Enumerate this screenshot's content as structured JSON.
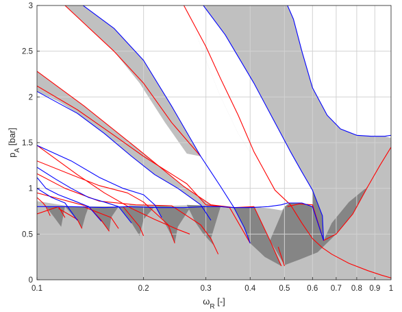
{
  "chart_data": {
    "type": "area",
    "title": "",
    "xlabel": {
      "symbol": "ω",
      "sub": "R",
      "unit": " [-]"
    },
    "ylabel": {
      "symbol": "p",
      "sub": "A",
      "unit": " [bar]"
    },
    "xscale": "log",
    "xlim": [
      0.1,
      1.0
    ],
    "ylim": [
      0,
      3
    ],
    "xticks": [
      0.1,
      0.2,
      0.3,
      0.4,
      0.5,
      0.6,
      0.7,
      0.8,
      0.9,
      1.0
    ],
    "xticklabels": [
      "0.1",
      "0.2",
      "0.3",
      "0.4",
      "0.5",
      "0.6",
      "0.7",
      "0.8",
      "0.9",
      "1"
    ],
    "yticks": [
      0,
      0.5,
      1,
      1.5,
      2,
      2.5,
      3
    ],
    "yticklabels": [
      "0",
      "0.5",
      "1",
      "1.5",
      "2",
      "2.5",
      "3"
    ],
    "grid": true,
    "legend": "none",
    "colors": {
      "region_light": "#c0c0c0",
      "region_dark": "#858585",
      "stable_region": "#ffffff",
      "boundary_red": "#ff0000",
      "boundary_blue": "#0000ff",
      "grid": "#d2d2d2"
    },
    "regions": [
      {
        "shade": "light",
        "points": [
          [
            0.1,
            3.0
          ],
          [
            0.1,
            0.0
          ],
          [
            1.0,
            0.0
          ],
          [
            1.0,
            1.55
          ],
          [
            0.96,
            1.57
          ],
          [
            0.88,
            1.57
          ],
          [
            0.8,
            1.58
          ],
          [
            0.72,
            1.65
          ],
          [
            0.66,
            1.8
          ],
          [
            0.6,
            2.1
          ],
          [
            0.56,
            2.5
          ],
          [
            0.53,
            2.85
          ],
          [
            0.51,
            3.0
          ]
        ]
      },
      {
        "shade": "white",
        "points": [
          [
            0.1,
            2.28
          ],
          [
            0.136,
            1.9
          ],
          [
            0.19,
            1.45
          ],
          [
            0.26,
            1.02
          ],
          [
            0.31,
            0.82
          ],
          [
            0.36,
            0.79
          ],
          [
            0.41,
            0.8
          ],
          [
            0.455,
            0.78
          ],
          [
            0.49,
            0.76
          ],
          [
            0.51,
            0.8
          ],
          [
            0.43,
            1.2
          ],
          [
            0.37,
            1.6
          ],
          [
            0.33,
            2.0
          ],
          [
            0.3,
            2.4
          ],
          [
            0.28,
            2.72
          ],
          [
            0.26,
            3.0
          ],
          [
            0.135,
            3.0
          ],
          [
            0.165,
            2.75
          ],
          [
            0.2,
            2.4
          ],
          [
            0.24,
            1.9
          ],
          [
            0.29,
            1.35
          ],
          [
            0.265,
            1.38
          ],
          [
            0.23,
            1.72
          ],
          [
            0.195,
            2.15
          ],
          [
            0.165,
            2.5
          ],
          [
            0.135,
            2.82
          ],
          [
            0.12,
            3.0
          ],
          [
            0.1,
            3.0
          ]
        ]
      },
      {
        "shade": "white",
        "points": [
          [
            0.295,
            3.0
          ],
          [
            0.34,
            2.68
          ],
          [
            0.41,
            2.15
          ],
          [
            0.47,
            1.72
          ],
          [
            0.52,
            1.4
          ],
          [
            0.56,
            1.18
          ],
          [
            0.6,
            0.98
          ],
          [
            0.645,
            0.43
          ],
          [
            0.6,
            0.8
          ],
          [
            0.56,
            0.84
          ],
          [
            0.52,
            0.84
          ],
          [
            0.49,
            0.8
          ],
          [
            0.43,
            1.2
          ],
          [
            0.37,
            1.6
          ],
          [
            0.33,
            2.0
          ],
          [
            0.3,
            2.4
          ],
          [
            0.28,
            2.72
          ],
          [
            0.26,
            3.0
          ]
        ]
      },
      {
        "shade": "white",
        "points": [
          [
            0.1,
            1.16
          ],
          [
            0.12,
            1.0
          ],
          [
            0.15,
            0.86
          ],
          [
            0.19,
            0.82
          ],
          [
            0.24,
            0.81
          ],
          [
            0.29,
            0.82
          ],
          [
            0.25,
            1.0
          ],
          [
            0.215,
            1.15
          ],
          [
            0.185,
            1.35
          ],
          [
            0.155,
            1.6
          ],
          [
            0.13,
            1.82
          ],
          [
            0.115,
            1.95
          ],
          [
            0.1,
            2.06
          ]
        ]
      },
      {
        "shade": "white",
        "points": [
          [
            0.1,
            0.86
          ],
          [
            0.125,
            0.8
          ],
          [
            0.155,
            0.79
          ],
          [
            0.18,
            0.8
          ],
          [
            0.2,
            0.93
          ],
          [
            0.175,
            1.0
          ],
          [
            0.15,
            1.12
          ],
          [
            0.125,
            1.3
          ],
          [
            0.1,
            1.47
          ]
        ]
      },
      {
        "shade": "dark",
        "points": [
          [
            0.6,
            0.98
          ],
          [
            0.64,
            0.7
          ],
          [
            0.645,
            0.43
          ],
          [
            0.68,
            0.62
          ],
          [
            0.76,
            0.85
          ],
          [
            0.86,
            1.02
          ],
          [
            0.78,
            0.72
          ],
          [
            0.7,
            0.5
          ],
          [
            0.62,
            0.3
          ],
          [
            0.55,
            0.22
          ],
          [
            0.5,
            0.16
          ],
          [
            0.455,
            0.43
          ],
          [
            0.5,
            0.8
          ],
          [
            0.52,
            0.84
          ],
          [
            0.56,
            0.84
          ],
          [
            0.6,
            0.8
          ]
        ]
      },
      {
        "shade": "dark",
        "points": [
          [
            0.36,
            0.79
          ],
          [
            0.385,
            0.57
          ],
          [
            0.4,
            0.4
          ],
          [
            0.44,
            0.25
          ],
          [
            0.49,
            0.15
          ],
          [
            0.455,
            0.43
          ],
          [
            0.41,
            0.8
          ]
        ]
      },
      {
        "shade": "dark",
        "points": [
          [
            0.265,
            0.82
          ],
          [
            0.28,
            0.63
          ],
          [
            0.295,
            0.5
          ],
          [
            0.315,
            0.38
          ],
          [
            0.325,
            0.28
          ],
          [
            0.31,
            0.45
          ],
          [
            0.33,
            0.8
          ]
        ]
      },
      {
        "shade": "dark",
        "points": [
          [
            0.215,
            0.82
          ],
          [
            0.225,
            0.68
          ],
          [
            0.235,
            0.55
          ],
          [
            0.245,
            0.4
          ],
          [
            0.25,
            0.58
          ],
          [
            0.27,
            0.78
          ]
        ]
      },
      {
        "shade": "dark",
        "points": [
          [
            0.17,
            0.8
          ],
          [
            0.185,
            0.62
          ],
          [
            0.195,
            0.48
          ],
          [
            0.2,
            0.66
          ],
          [
            0.215,
            0.8
          ]
        ]
      },
      {
        "shade": "dark",
        "points": [
          [
            0.14,
            0.8
          ],
          [
            0.152,
            0.64
          ],
          [
            0.16,
            0.53
          ],
          [
            0.162,
            0.68
          ],
          [
            0.17,
            0.8
          ]
        ]
      },
      {
        "shade": "dark",
        "points": [
          [
            0.12,
            0.8
          ],
          [
            0.13,
            0.65
          ],
          [
            0.134,
            0.56
          ],
          [
            0.137,
            0.7
          ],
          [
            0.14,
            0.8
          ]
        ]
      },
      {
        "shade": "dark",
        "points": [
          [
            0.106,
            0.8
          ],
          [
            0.113,
            0.66
          ],
          [
            0.117,
            0.58
          ],
          [
            0.12,
            0.8
          ]
        ]
      }
    ],
    "series": [
      {
        "color": "red",
        "x": [
          0.1,
          0.136,
          0.19,
          0.26,
          0.31,
          0.36,
          0.41,
          0.455,
          0.49
        ],
        "y": [
          2.28,
          1.9,
          1.45,
          1.02,
          0.82,
          0.79,
          0.8,
          0.43,
          0.15
        ]
      },
      {
        "color": "red",
        "x": [
          0.1,
          0.13,
          0.155,
          0.185,
          0.215,
          0.25,
          0.27
        ],
        "y": [
          1.47,
          1.15,
          0.95,
          0.78,
          0.66,
          0.55,
          0.5
        ]
      },
      {
        "color": "red",
        "x": [
          0.1,
          0.12,
          0.15,
          0.19,
          0.24,
          0.29,
          0.31,
          0.325
        ],
        "y": [
          1.16,
          1.0,
          0.86,
          0.82,
          0.81,
          0.6,
          0.45,
          0.28
        ]
      },
      {
        "color": "red",
        "x": [
          0.12,
          0.165,
          0.2,
          0.24,
          0.29
        ],
        "y": [
          3.0,
          2.5,
          2.15,
          1.72,
          1.35
        ]
      },
      {
        "color": "red",
        "x": [
          0.1,
          0.13,
          0.165,
          0.2,
          0.265,
          0.3,
          0.35,
          0.4
        ],
        "y": [
          2.12,
          1.86,
          1.58,
          1.35,
          1.05,
          0.82,
          0.79,
          0.4
        ]
      },
      {
        "color": "red",
        "x": [
          0.1,
          0.125,
          0.15,
          0.18,
          0.2,
          0.235,
          0.245
        ],
        "y": [
          1.3,
          1.15,
          1.03,
          0.95,
          0.85,
          0.6,
          0.4
        ]
      },
      {
        "color": "red",
        "x": [
          0.1,
          0.112,
          0.125,
          0.14,
          0.152,
          0.16
        ],
        "y": [
          0.95,
          0.9,
          0.85,
          0.8,
          0.65,
          0.53
        ]
      },
      {
        "color": "red",
        "x": [
          0.1,
          0.104,
          0.106,
          0.109
        ],
        "y": [
          0.9,
          0.84,
          0.8,
          0.7
        ]
      },
      {
        "color": "red",
        "x": [
          0.1,
          0.115,
          0.12
        ],
        "y": [
          0.72,
          0.8,
          0.68
        ]
      },
      {
        "color": "red",
        "x": [
          0.115,
          0.13,
          0.134
        ],
        "y": [
          0.78,
          0.66,
          0.56
        ]
      },
      {
        "color": "red",
        "x": [
          0.135,
          0.162,
          0.17
        ],
        "y": [
          0.8,
          0.68,
          0.56
        ]
      },
      {
        "color": "red",
        "x": [
          0.175,
          0.195,
          0.2
        ],
        "y": [
          0.8,
          0.58,
          0.48
        ]
      },
      {
        "color": "red",
        "x": [
          0.26,
          0.3,
          0.33,
          0.37,
          0.41,
          0.47,
          0.52,
          0.56,
          0.6,
          0.64,
          0.68,
          0.76,
          0.86,
          0.94,
          1.0
        ],
        "y": [
          3.0,
          2.55,
          2.2,
          1.8,
          1.4,
          0.98,
          0.82,
          0.62,
          0.45,
          0.35,
          0.28,
          0.18,
          0.1,
          0.05,
          0.02
        ]
      },
      {
        "color": "red",
        "x": [
          0.51,
          0.55,
          0.6,
          0.645,
          0.7,
          0.78,
          0.86,
          0.93,
          1.0
        ],
        "y": [
          0.8,
          0.83,
          0.82,
          0.43,
          0.5,
          0.72,
          1.02,
          1.25,
          1.45
        ]
      },
      {
        "color": "red",
        "x": [
          0.48,
          0.5
        ],
        "y": [
          0.36,
          0.15
        ]
      },
      {
        "color": "blue",
        "x": [
          0.51,
          0.53,
          0.56,
          0.6,
          0.66,
          0.72,
          0.8,
          0.88,
          0.96,
          1.0
        ],
        "y": [
          3.0,
          2.85,
          2.5,
          2.1,
          1.8,
          1.65,
          1.58,
          1.57,
          1.57,
          1.58
        ]
      },
      {
        "color": "blue",
        "x": [
          0.295,
          0.34,
          0.41,
          0.47,
          0.52,
          0.56,
          0.6,
          0.64,
          0.645
        ],
        "y": [
          3.0,
          2.68,
          2.15,
          1.72,
          1.4,
          1.18,
          0.98,
          0.7,
          0.43
        ]
      },
      {
        "color": "blue",
        "x": [
          0.135,
          0.165,
          0.2,
          0.24,
          0.29,
          0.33,
          0.36,
          0.385,
          0.4
        ],
        "y": [
          3.0,
          2.75,
          2.4,
          1.9,
          1.35,
          1.02,
          0.79,
          0.57,
          0.4
        ]
      },
      {
        "color": "blue",
        "x": [
          0.1,
          0.13,
          0.155,
          0.185,
          0.215,
          0.25,
          0.29,
          0.31
        ],
        "y": [
          2.06,
          1.82,
          1.6,
          1.35,
          1.15,
          1.0,
          0.82,
          0.65
        ]
      },
      {
        "color": "blue",
        "x": [
          0.1,
          0.125,
          0.15,
          0.175,
          0.2,
          0.215,
          0.225
        ],
        "y": [
          1.47,
          1.3,
          1.12,
          1.0,
          0.93,
          0.82,
          0.68
        ]
      },
      {
        "color": "blue",
        "x": [
          0.1,
          0.113,
          0.125,
          0.14,
          0.155,
          0.17,
          0.185
        ],
        "y": [
          1.23,
          1.1,
          1.0,
          0.9,
          0.85,
          0.8,
          0.62
        ]
      },
      {
        "color": "blue",
        "x": [
          0.1,
          0.106,
          0.115,
          0.128,
          0.14,
          0.152
        ],
        "y": [
          1.12,
          1.0,
          0.93,
          0.86,
          0.8,
          0.64
        ]
      },
      {
        "color": "blue",
        "x": [
          0.1,
          0.11,
          0.12,
          0.13
        ],
        "y": [
          1.0,
          0.9,
          0.84,
          0.65
        ]
      },
      {
        "color": "blue",
        "x": [
          0.1,
          0.125,
          0.155,
          0.18,
          0.22,
          0.26,
          0.3,
          0.33,
          0.36,
          0.4,
          0.45,
          0.49,
          0.51,
          0.53,
          0.56,
          0.6,
          0.645
        ],
        "y": [
          0.8,
          0.8,
          0.79,
          0.8,
          0.79,
          0.79,
          0.8,
          0.8,
          0.79,
          0.79,
          0.8,
          0.82,
          0.84,
          0.84,
          0.84,
          0.8,
          0.43
        ]
      }
    ]
  }
}
